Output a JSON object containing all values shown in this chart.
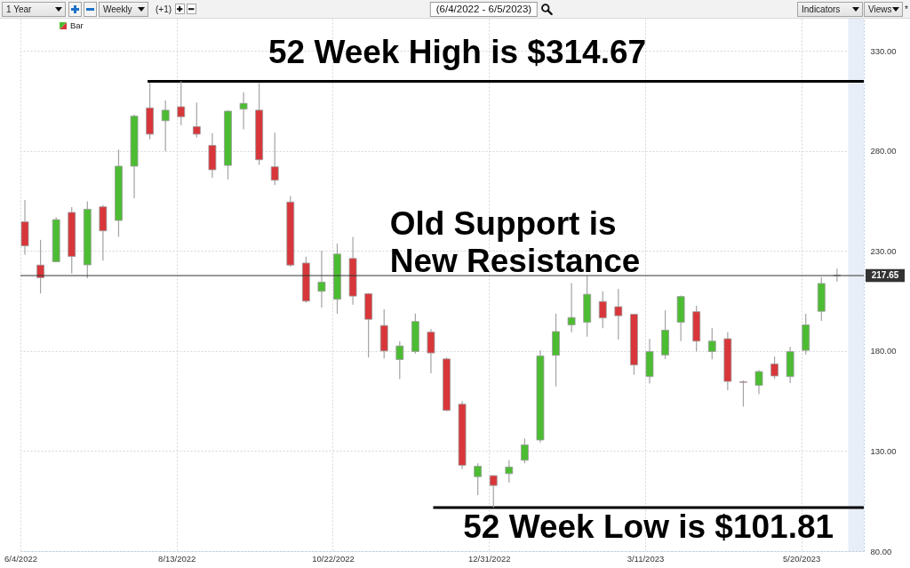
{
  "chart_data": {
    "type": "candlestick",
    "title": "(6/4/2022 - 6/5/2023)",
    "x": [
      "2022-06-06",
      "2022-06-13",
      "2022-06-20",
      "2022-06-27",
      "2022-07-04",
      "2022-07-11",
      "2022-07-18",
      "2022-07-25",
      "2022-08-01",
      "2022-08-08",
      "2022-08-15",
      "2022-08-22",
      "2022-08-29",
      "2022-09-05",
      "2022-09-12",
      "2022-09-19",
      "2022-09-26",
      "2022-10-03",
      "2022-10-10",
      "2022-10-17",
      "2022-10-24",
      "2022-10-31",
      "2022-11-07",
      "2022-11-14",
      "2022-11-21",
      "2022-11-28",
      "2022-12-05",
      "2022-12-12",
      "2022-12-19",
      "2022-12-26",
      "2023-01-02",
      "2023-01-09",
      "2023-01-16",
      "2023-01-23",
      "2023-01-30",
      "2023-02-06",
      "2023-02-13",
      "2023-02-20",
      "2023-02-27",
      "2023-03-06",
      "2023-03-13",
      "2023-03-20",
      "2023-03-27",
      "2023-04-03",
      "2023-04-10",
      "2023-04-17",
      "2023-04-24",
      "2023-05-01",
      "2023-05-08",
      "2023-05-15",
      "2023-05-22",
      "2023-05-29",
      "2023-06-05"
    ],
    "series": [
      {
        "type": "line",
        "x": [
          "2022-07-31",
          "2023-06-17"
        ],
        "values": [
          314.67,
          314.67
        ],
        "color": "#000000"
      },
      {
        "type": "line",
        "x": [
          "2022-12-06",
          "2023-06-17"
        ],
        "values": [
          101.81,
          101.81
        ],
        "color": "#000000"
      },
      {
        "name": "Bar",
        "ohlc": [
          [
            244.5,
            255.4,
            228.1,
            232.5
          ],
          [
            222.9,
            235.5,
            208.7,
            216.6
          ],
          [
            224.6,
            246.7,
            224.4,
            245.6
          ],
          [
            249.2,
            251.9,
            218.7,
            227.2
          ],
          [
            223.0,
            254.7,
            216.3,
            250.8
          ],
          [
            252.0,
            252.9,
            225.1,
            240.0
          ],
          [
            245.2,
            280.6,
            237.0,
            272.3
          ],
          [
            272.3,
            298.0,
            256.3,
            297.3
          ],
          [
            301.4,
            313.9,
            285.7,
            288.3
          ],
          [
            295.0,
            305.2,
            279.7,
            300.3
          ],
          [
            302.0,
            314.67,
            292.8,
            297.0
          ],
          [
            292.1,
            304.0,
            286.6,
            288.3
          ],
          [
            282.7,
            288.8,
            266.5,
            270.5
          ],
          [
            272.7,
            300.2,
            265.7,
            299.8
          ],
          [
            300.8,
            309.2,
            290.7,
            303.7
          ],
          [
            300.3,
            313.8,
            273.0,
            275.5
          ],
          [
            272.0,
            289.1,
            262.8,
            265.3
          ],
          [
            254.4,
            257.4,
            222.1,
            222.9
          ],
          [
            223.9,
            227.1,
            204.1,
            204.9
          ],
          [
            209.8,
            230.1,
            201.7,
            214.4
          ],
          [
            205.8,
            233.6,
            198.6,
            228.4
          ],
          [
            226.2,
            237.0,
            203.1,
            207.4
          ],
          [
            208.6,
            208.9,
            176.7,
            195.8
          ],
          [
            192.7,
            200.8,
            176.3,
            180.0
          ],
          [
            175.7,
            184.9,
            165.9,
            182.5
          ],
          [
            179.7,
            198.7,
            178.7,
            194.7
          ],
          [
            189.4,
            190.9,
            168.8,
            179.0
          ],
          [
            176.0,
            176.7,
            149.9,
            150.3
          ],
          [
            153.4,
            154.9,
            121.0,
            122.9
          ],
          [
            117.2,
            123.9,
            108.0,
            122.4
          ],
          [
            117.7,
            118.0,
            101.81,
            112.8
          ],
          [
            118.7,
            125.4,
            114.2,
            122.0
          ],
          [
            125.4,
            136.3,
            123.9,
            133.1
          ],
          [
            135.5,
            180.4,
            134.3,
            177.5
          ],
          [
            177.8,
            198.6,
            162.3,
            189.7
          ],
          [
            193.0,
            213.9,
            189.4,
            196.7
          ],
          [
            194.3,
            217.6,
            187.1,
            208.3
          ],
          [
            204.7,
            209.8,
            191.3,
            196.5
          ],
          [
            202.1,
            211.0,
            185.7,
            197.6
          ],
          [
            198.3,
            198.6,
            168.1,
            173.0
          ],
          [
            167.2,
            186.0,
            163.7,
            179.7
          ],
          [
            178.0,
            200.3,
            176.0,
            190.4
          ],
          [
            194.3,
            207.7,
            184.9,
            207.2
          ],
          [
            199.6,
            202.6,
            179.7,
            184.9
          ],
          [
            179.7,
            191.3,
            175.8,
            184.9
          ],
          [
            186.1,
            189.4,
            160.4,
            164.8
          ],
          [
            164.6,
            165.3,
            152.2,
            164.3
          ],
          [
            162.8,
            170.5,
            158.4,
            169.7
          ],
          [
            173.5,
            177.2,
            166.0,
            167.5
          ],
          [
            167.2,
            182.0,
            163.9,
            179.7
          ],
          [
            180.3,
            198.6,
            178.2,
            193.0
          ],
          [
            199.8,
            216.9,
            195.0,
            213.7
          ],
          [
            217.8,
            221.1,
            214.7,
            217.65
          ]
        ],
        "colors": [
          "#d8363a",
          "#d8363a",
          "#4cbc32",
          "#d8363a",
          "#4cbc32",
          "#d8363a",
          "#4cbc32",
          "#4cbc32",
          "#d8363a",
          "#4cbc32",
          "#d8363a",
          "#d8363a",
          "#d8363a",
          "#4cbc32",
          "#4cbc32",
          "#d8363a",
          "#d8363a",
          "#d8363a",
          "#d8363a",
          "#4cbc32",
          "#4cbc32",
          "#d8363a",
          "#d8363a",
          "#d8363a",
          "#4cbc32",
          "#4cbc32",
          "#d8363a",
          "#d8363a",
          "#d8363a",
          "#4cbc32",
          "#d8363a",
          "#4cbc32",
          "#4cbc32",
          "#4cbc32",
          "#4cbc32",
          "#4cbc32",
          "#4cbc32",
          "#d8363a",
          "#d8363a",
          "#d8363a",
          "#4cbc32",
          "#4cbc32",
          "#4cbc32",
          "#d8363a",
          "#4cbc32",
          "#d8363a",
          "#d8363a",
          "#4cbc32",
          "#d8363a",
          "#4cbc32",
          "#4cbc32",
          "#4cbc32",
          "#d8363a"
        ]
      }
    ],
    "xlim": [
      "2022-06-04",
      "2023-06-17"
    ],
    "xticks": [
      {
        "value": "2022-06-04",
        "label": "6/4/2022"
      },
      {
        "value": "2022-08-13",
        "label": "8/13/2022"
      },
      {
        "value": "2022-10-22",
        "label": "10/22/2022"
      },
      {
        "value": "2022-12-31",
        "label": "12/31/2022"
      },
      {
        "value": "2023-03-11",
        "label": "3/11/2023"
      },
      {
        "value": "2023-05-20",
        "label": "5/20/2023"
      }
    ],
    "ylim": [
      80,
      346
    ],
    "yticks": [
      {
        "value": 80,
        "label": "80.00"
      },
      {
        "value": 130,
        "label": "130.00"
      },
      {
        "value": 180,
        "label": "180.00"
      },
      {
        "value": 230,
        "label": "230.00"
      },
      {
        "value": 280,
        "label": "280.00"
      },
      {
        "value": 330,
        "label": "330.00"
      }
    ],
    "grid": true,
    "legend": "top left",
    "ref_lines": [
      {
        "axis": "y",
        "value": 217.65,
        "label": "217.65",
        "color": "#333333"
      }
    ],
    "bands": [
      {
        "axis": "x",
        "from": "2023-06-10",
        "to": "2023-06-17",
        "color": "#e8eef7"
      }
    ],
    "annotations": [
      "1 Year",
      "Weekly",
      "(+1)",
      "Indicators",
      "Views",
      "*",
      "52 Week High is $314.67",
      "Old Support is\nNew Resistance",
      "52 Week Low is $101.81"
    ]
  }
}
